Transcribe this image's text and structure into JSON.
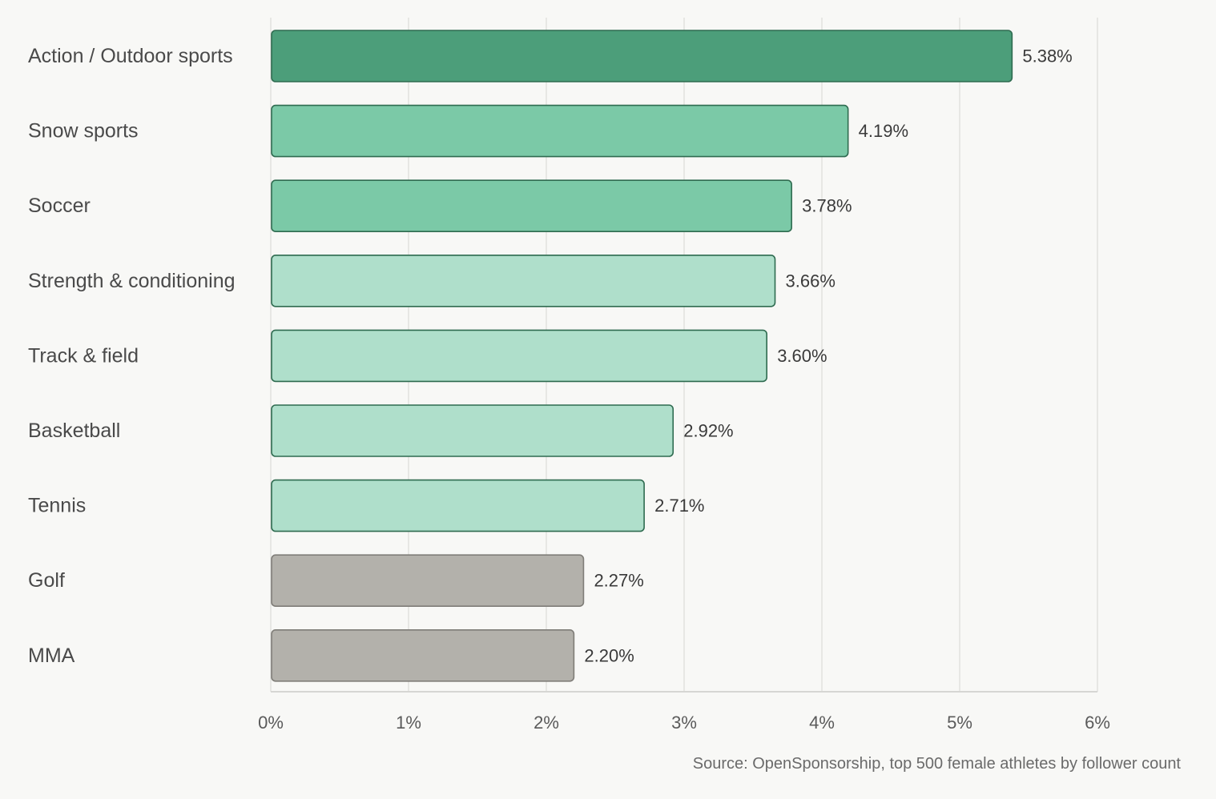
{
  "chart_data": {
    "type": "bar",
    "orientation": "horizontal",
    "categories": [
      "Action / Outdoor sports",
      "Snow sports",
      "Soccer",
      "Strength & conditioning",
      "Track & field",
      "Basketball",
      "Tennis",
      "Golf",
      "MMA"
    ],
    "values": [
      5.38,
      4.19,
      3.78,
      3.66,
      3.6,
      2.92,
      2.71,
      2.27,
      2.2
    ],
    "value_labels": [
      "5.38%",
      "4.19%",
      "3.78%",
      "3.66%",
      "3.60%",
      "2.92%",
      "2.71%",
      "2.27%",
      "2.20%"
    ],
    "bar_colors": [
      "#4c9e7a",
      "#7bc9a7",
      "#7bc9a7",
      "#afdfcb",
      "#afdfcb",
      "#afdfcb",
      "#afdfcb",
      "#b3b1ab",
      "#b3b1ab"
    ],
    "bar_border_colors": [
      "#2f6b50",
      "#2f6b50",
      "#2f6b50",
      "#2f6b50",
      "#2f6b50",
      "#2f6b50",
      "#2f6b50",
      "#7f7d78",
      "#7f7d78"
    ],
    "xlim": [
      0,
      6
    ],
    "xticks": [
      "0%",
      "1%",
      "2%",
      "3%",
      "4%",
      "5%",
      "6%"
    ],
    "grid": true,
    "title": "",
    "xlabel": "",
    "ylabel": ""
  },
  "source_note": "Source: OpenSponsorship, top 500 female athletes by follower count"
}
